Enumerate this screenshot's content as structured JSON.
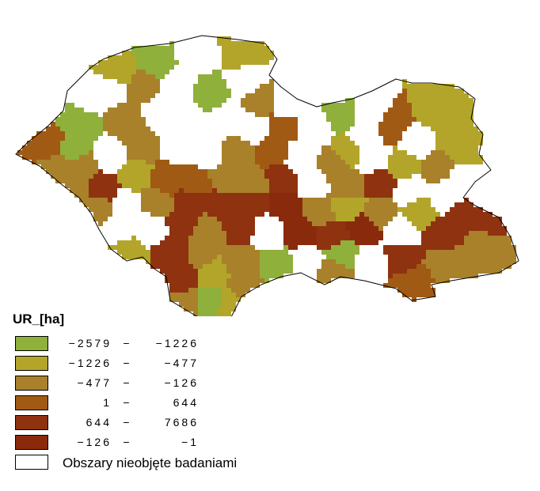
{
  "legend": {
    "title": "UR_[ha]",
    "classes": [
      {
        "low": "−2579",
        "high": "−1226",
        "color": "#8fb03a"
      },
      {
        "low": "−1226",
        "high": "−477",
        "color": "#b3a52a"
      },
      {
        "low": "−477",
        "high": "−126",
        "color": "#a8812a"
      },
      {
        "low": "1",
        "high": "644",
        "color": "#a05a14"
      },
      {
        "low": "644",
        "high": "7686",
        "color": "#8f3210"
      },
      {
        "low": "−126",
        "high": "−1",
        "color": "#8a2a0c"
      }
    ],
    "separator": "−",
    "no_data_label": "Obszary nieobjęte badaniami",
    "no_data_color": "#ffffff"
  },
  "map": {
    "border_color": "#000000"
  }
}
